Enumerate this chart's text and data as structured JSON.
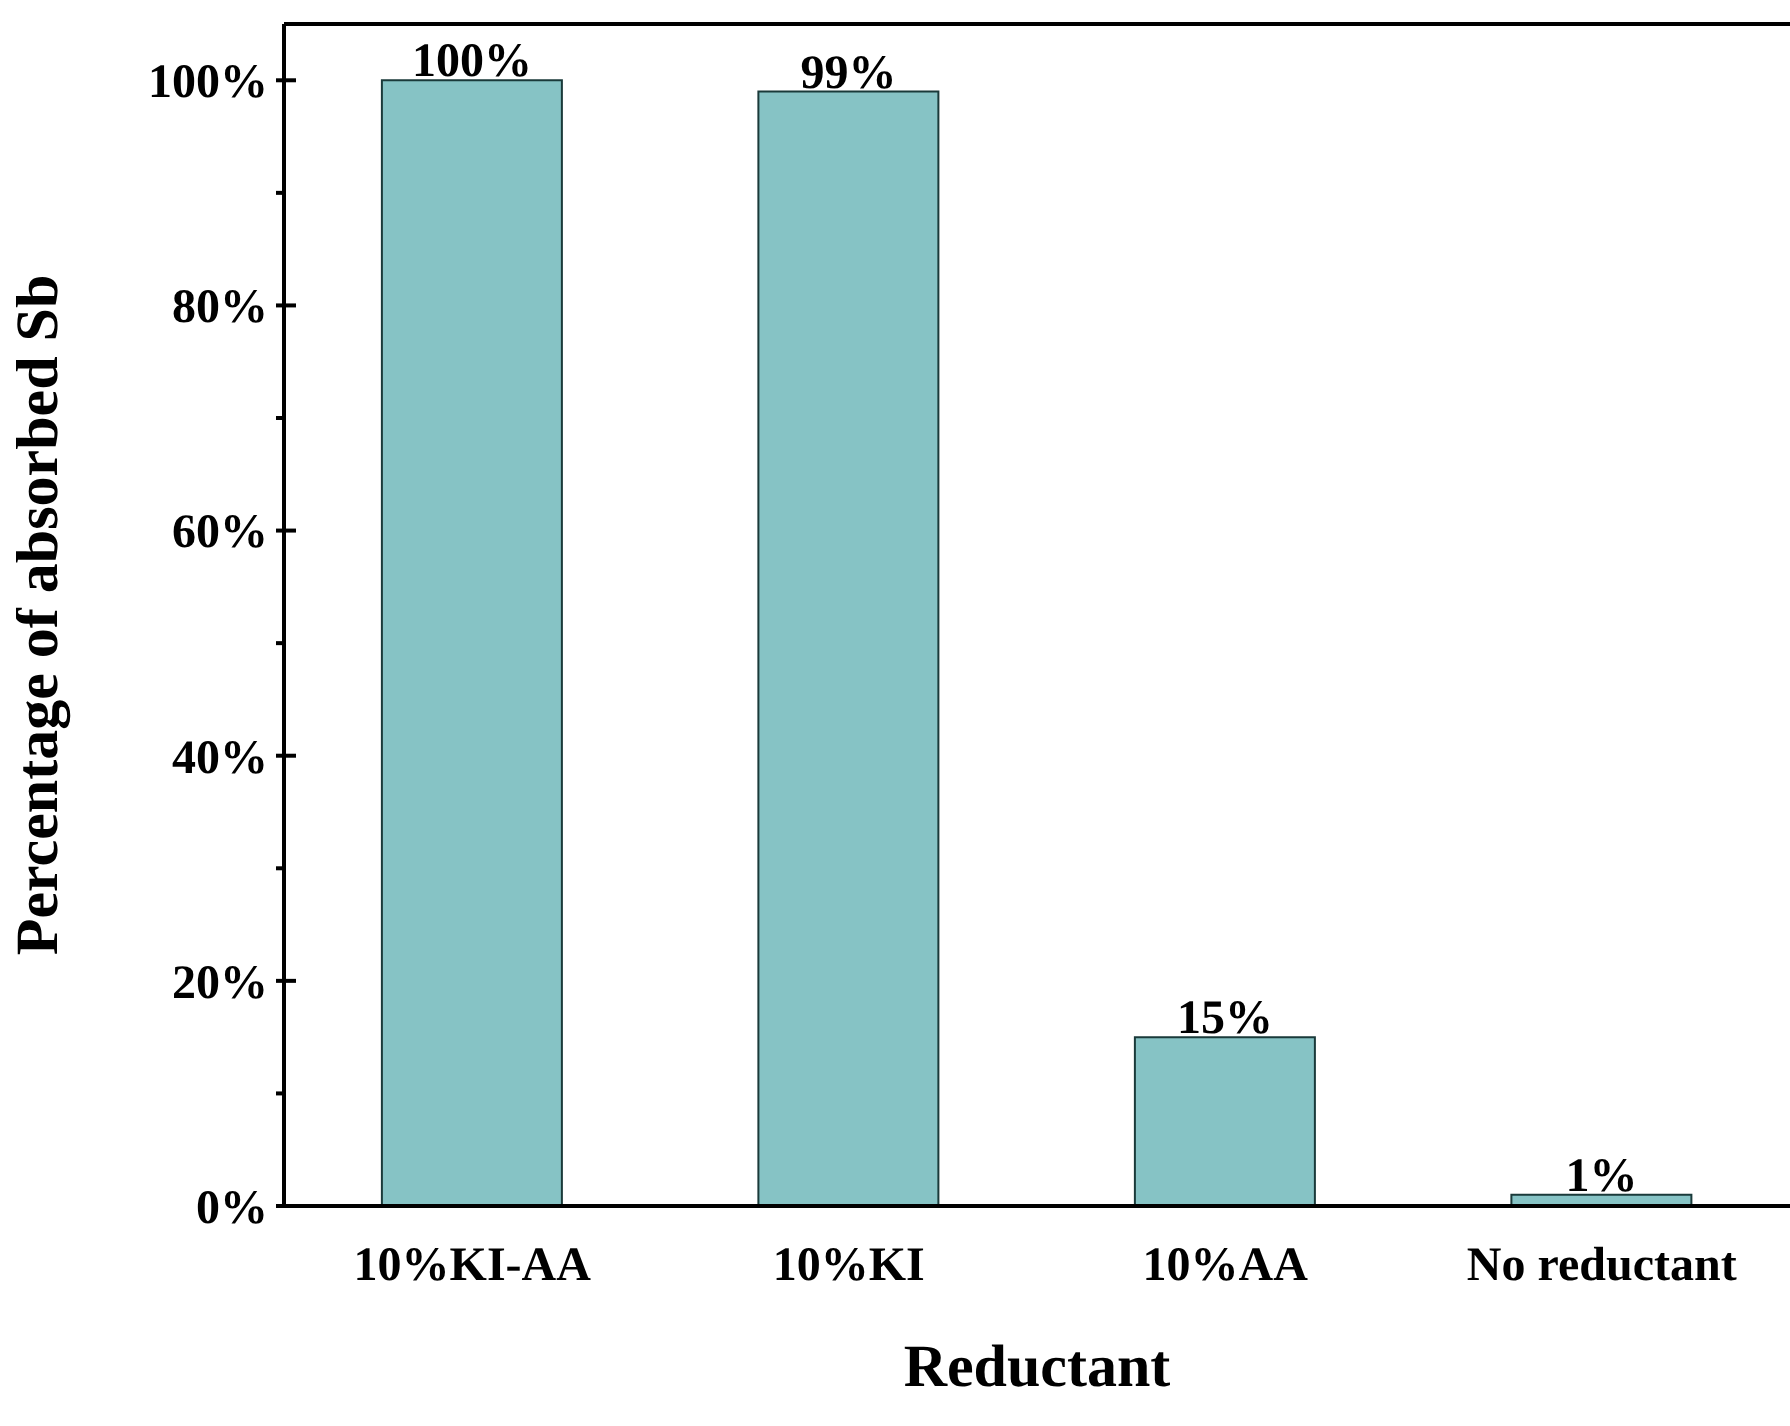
{
  "chart_data": {
    "type": "bar",
    "xlabel": "Reductant",
    "ylabel": "Percentage of absorbed Sb",
    "categories": [
      "10%KI-AA",
      "10%KI",
      "10%AA",
      "No reductant"
    ],
    "values": [
      100,
      99,
      15,
      1
    ],
    "value_labels": [
      "100%",
      "99%",
      "15%",
      "1%"
    ],
    "color": "#86c3c5",
    "ylim": [
      0,
      105
    ],
    "yticks": [
      {
        "value": 0,
        "label": "0%"
      },
      {
        "value": 10,
        "label": null
      },
      {
        "value": 20,
        "label": "20%"
      },
      {
        "value": 30,
        "label": null
      },
      {
        "value": 40,
        "label": "40%"
      },
      {
        "value": 50,
        "label": null
      },
      {
        "value": 60,
        "label": "60%"
      },
      {
        "value": 70,
        "label": null
      },
      {
        "value": 80,
        "label": "80%"
      },
      {
        "value": 90,
        "label": null
      },
      {
        "value": 100,
        "label": "100%"
      }
    ],
    "grid": false,
    "legend": false
  }
}
